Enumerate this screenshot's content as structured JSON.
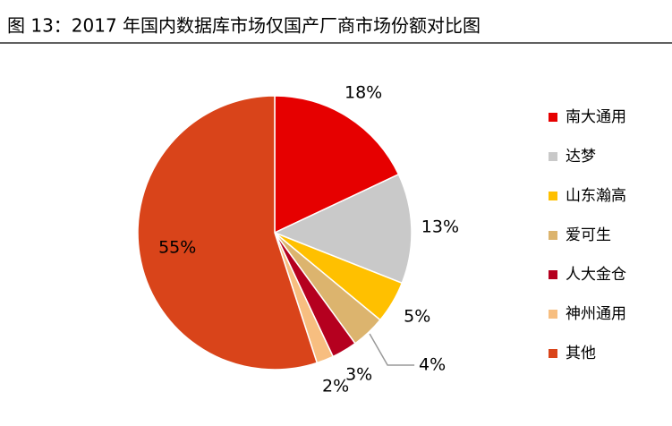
{
  "chart_data": {
    "type": "pie",
    "title": "图 13：2017 年国内数据库市场仅国产厂商市场份额对比图",
    "categories": [
      "南大通用",
      "达梦",
      "山东瀚高",
      "爱可生",
      "人大金仓",
      "神州通用",
      "其他"
    ],
    "values": [
      18,
      13,
      5,
      4,
      3,
      2,
      55
    ],
    "value_labels": [
      "18%",
      "13%",
      "5%",
      "4%",
      "3%",
      "2%",
      "55%"
    ],
    "colors": [
      "#e60000",
      "#c9c9c9",
      "#ffc000",
      "#dcb46e",
      "#b5001f",
      "#f7be80",
      "#d9441a"
    ],
    "legend": "right"
  }
}
